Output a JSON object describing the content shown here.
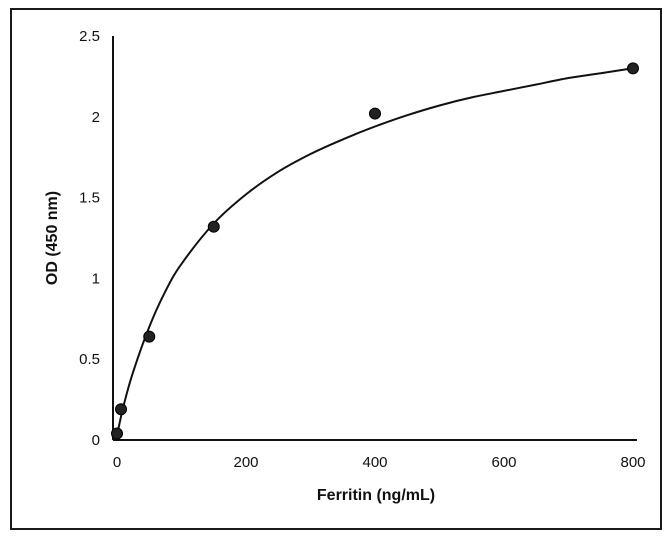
{
  "chart_data": {
    "type": "scatter",
    "title": "",
    "xlabel": "Ferritin (ng/mL)",
    "ylabel": "OD (450 nm)",
    "xlim": [
      0,
      800
    ],
    "ylim": [
      0,
      2.5
    ],
    "x_ticks": [
      0,
      200,
      400,
      600,
      800
    ],
    "y_ticks": [
      0,
      0.5,
      1,
      1.5,
      2,
      2.5
    ],
    "x_tick_labels": [
      "0",
      "200",
      "400",
      "600",
      "800"
    ],
    "y_tick_labels": [
      "0",
      "0.5",
      "1",
      "1.5",
      "2",
      "2.5"
    ],
    "grid": false,
    "legend": "none",
    "series": [
      {
        "x": [
          0,
          6.25,
          50,
          150,
          400,
          800
        ],
        "y": [
          0.04,
          0.19,
          0.64,
          1.32,
          2.02,
          2.3
        ],
        "marker": "circle",
        "marker_color": "#222222"
      }
    ],
    "fit_curve": {
      "type": "saturation",
      "color": "#111111",
      "x": [
        0,
        10,
        25,
        50,
        75,
        100,
        150,
        200,
        250,
        300,
        350,
        400,
        450,
        500,
        550,
        600,
        650,
        700,
        750,
        800
      ],
      "y": [
        0.03,
        0.21,
        0.42,
        0.7,
        0.92,
        1.09,
        1.34,
        1.52,
        1.66,
        1.77,
        1.86,
        1.94,
        2.01,
        2.07,
        2.12,
        2.16,
        2.2,
        2.24,
        2.27,
        2.3
      ]
    }
  }
}
